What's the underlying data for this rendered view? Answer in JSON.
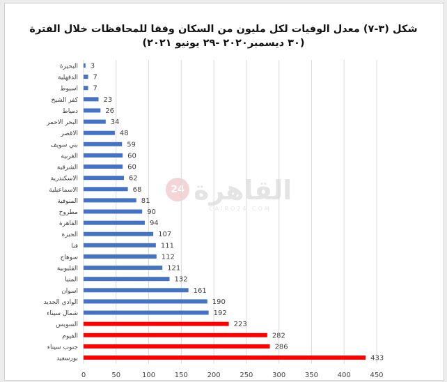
{
  "title_line1": "شكل (٣-٧) معدل الوفيات لكل مليون من السكان وفقا للمحافظات خلال الفترة",
  "title_line2": "(٣٠ ديسمبر٢٠٢٠ -٢٩ يونيو ٢٠٢١)",
  "watermark": {
    "text": "القاهرة",
    "badge": "24",
    "sub": "CAIRO24.COM"
  },
  "colors": {
    "blue": "#4472c4",
    "red": "#ff0000",
    "grid": "#d9d9d9",
    "text": "#404040"
  },
  "chart_data": {
    "type": "bar",
    "orientation": "horizontal",
    "title": "شكل (٣-٧) معدل الوفيات لكل مليون من السكان وفقا للمحافظات خلال الفترة (٣٠ ديسمبر٢٠٢٠ -٢٩ يونيو ٢٠٢١)",
    "xlim": [
      0,
      450
    ],
    "xticks": [
      0,
      50,
      100,
      150,
      200,
      250,
      300,
      350,
      400,
      450
    ],
    "grid": true,
    "categories": [
      "البحيرة",
      "الدقهلية",
      "اسيوط",
      "كفر الشيخ",
      "دمياط",
      "البحر الاحمر",
      "الاقصر",
      "بني سويف",
      "الغربية",
      "الشرقية",
      "الاسكندرية",
      "الاسماعيلية",
      "المنوفية",
      "مطروح",
      "القاهرة",
      "الجيزة",
      "قنا",
      "سوهاج",
      "القليوبية",
      "المنيا",
      "اسوان",
      "الوادي الجديد",
      "شمال سيناء",
      "السويس",
      "الفيوم",
      "جنوب سيناء",
      "بورسعيد"
    ],
    "values": [
      3,
      7,
      7,
      23,
      26,
      34,
      48,
      59,
      60,
      60,
      62,
      68,
      81,
      90,
      94,
      107,
      111,
      112,
      121,
      132,
      161,
      190,
      192,
      223,
      282,
      286,
      433
    ],
    "bar_colors": [
      "blue",
      "blue",
      "blue",
      "blue",
      "blue",
      "blue",
      "blue",
      "blue",
      "blue",
      "blue",
      "blue",
      "blue",
      "blue",
      "blue",
      "blue",
      "blue",
      "blue",
      "blue",
      "blue",
      "blue",
      "blue",
      "blue",
      "blue",
      "red",
      "red",
      "red",
      "red"
    ]
  }
}
